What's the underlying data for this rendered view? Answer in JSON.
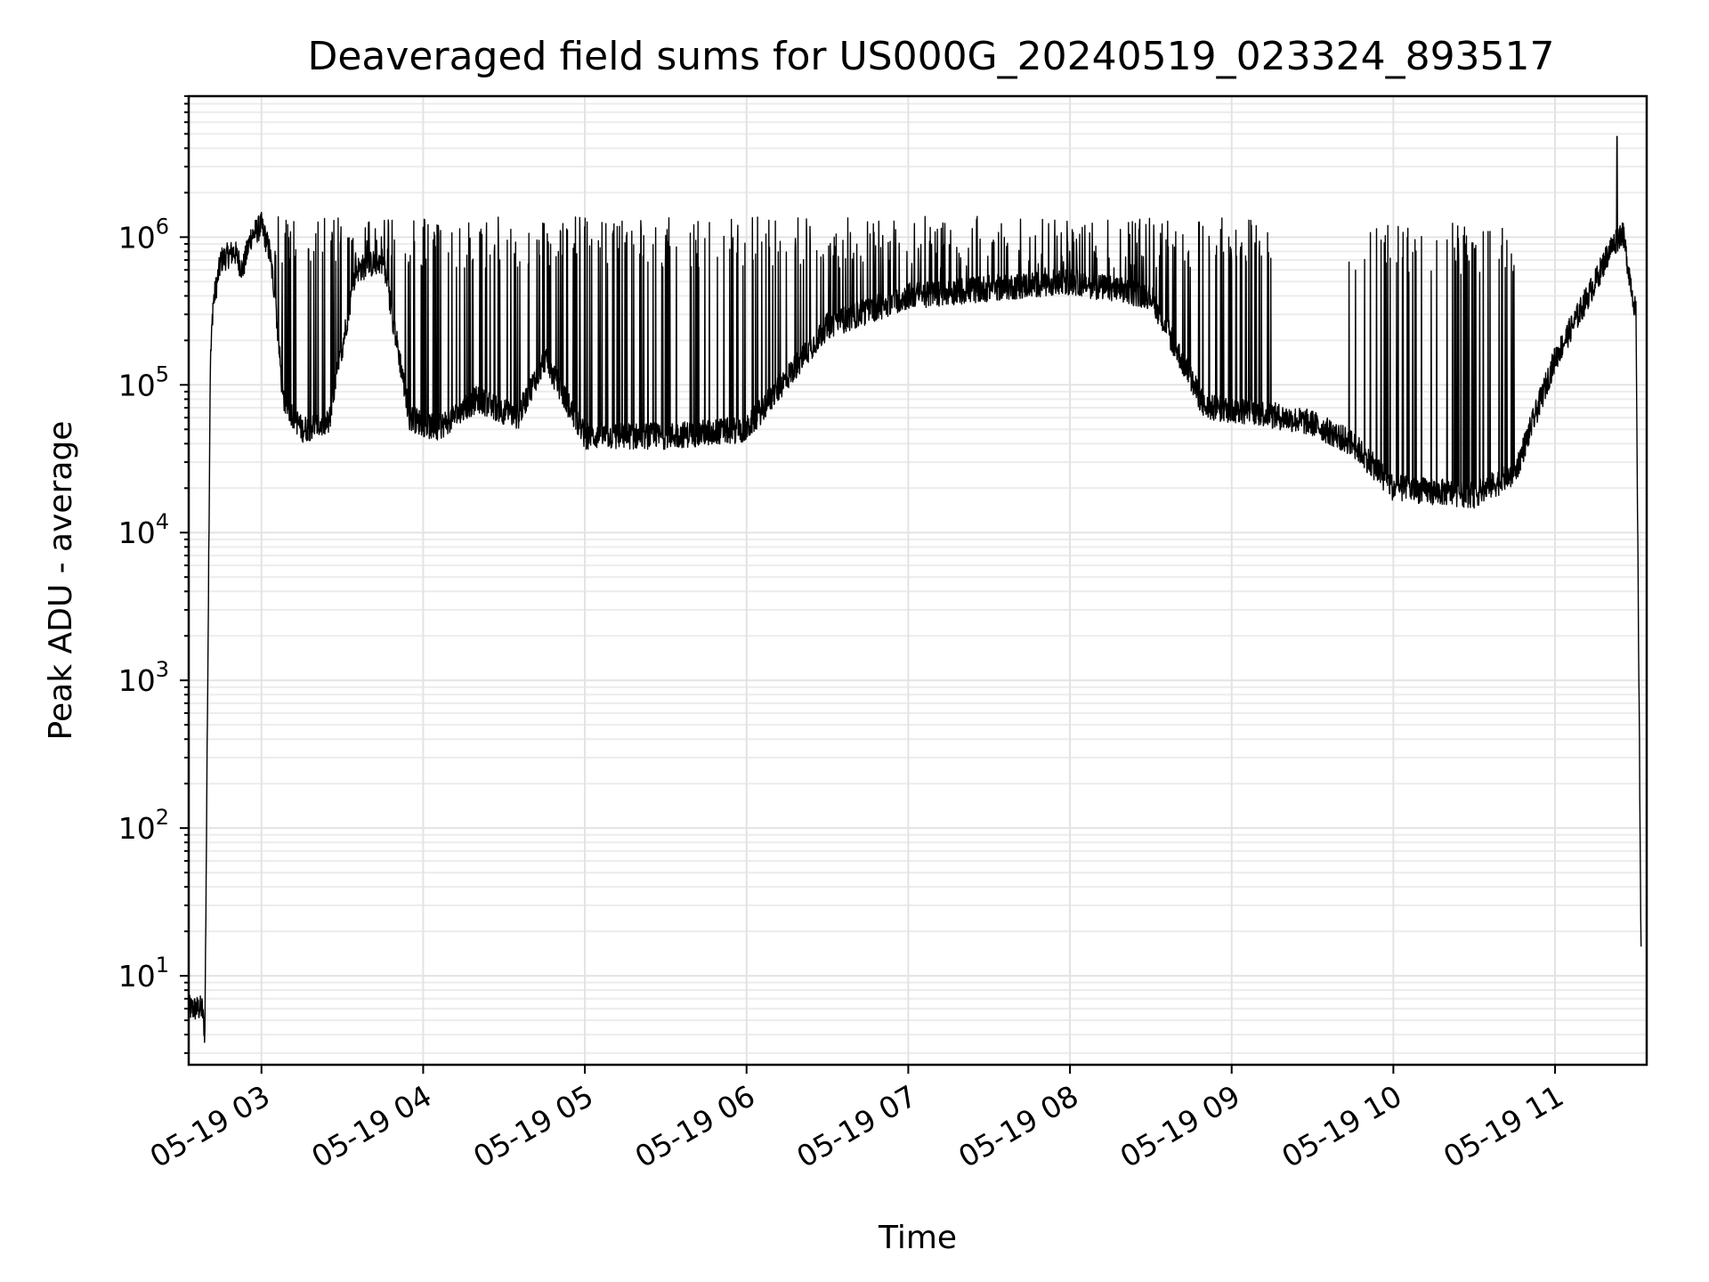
{
  "chart_data": {
    "type": "line",
    "title": "Deaveraged field sums for US000G_20240519_023324_893517",
    "xlabel": "Time",
    "ylabel": "Peak ADU - average",
    "yscale": "log",
    "ylim": [
      2.5,
      9000000
    ],
    "xlim": [
      "2024-05-19 02:33",
      "2024-05-19 11:34"
    ],
    "grid": true,
    "x_tick_labels": [
      "05-19 03",
      "05-19 04",
      "05-19 05",
      "05-19 06",
      "05-19 07",
      "05-19 08",
      "05-19 09",
      "05-19 10",
      "05-19 11"
    ],
    "y_tick_labels": [
      "10^1",
      "10^2",
      "10^3",
      "10^4",
      "10^5",
      "10^6"
    ],
    "series": [
      {
        "color": "#000000",
        "x": [
          "2024-05-19 02:33",
          "2024-05-19 02:38",
          "2024-05-19 02:39",
          "2024-05-19 02:41",
          "2024-05-19 02:42",
          "2024-05-19 02:45",
          "2024-05-19 02:50",
          "2024-05-19 02:53",
          "2024-05-19 02:56",
          "2024-05-19 03:00",
          "2024-05-19 03:03",
          "2024-05-19 03:05",
          "2024-05-19 03:08",
          "2024-05-19 03:15",
          "2024-05-19 03:25",
          "2024-05-19 03:35",
          "2024-05-19 03:45",
          "2024-05-19 03:55",
          "2024-05-19 04:05",
          "2024-05-19 04:20",
          "2024-05-19 04:35",
          "2024-05-19 04:45",
          "2024-05-19 05:00",
          "2024-05-19 05:30",
          "2024-05-19 06:00",
          "2024-05-19 06:30",
          "2024-05-19 07:00",
          "2024-05-19 07:30",
          "2024-05-19 08:00",
          "2024-05-19 08:30",
          "2024-05-19 08:50",
          "2024-05-19 09:10",
          "2024-05-19 09:30",
          "2024-05-19 09:45",
          "2024-05-19 10:00",
          "2024-05-19 10:30",
          "2024-05-19 10:45",
          "2024-05-19 11:00",
          "2024-05-19 11:15",
          "2024-05-19 11:20",
          "2024-05-19 11:25",
          "2024-05-19 11:30",
          "2024-05-19 11:32"
        ],
        "values": [
          6,
          6,
          4,
          130000,
          350000,
          700000,
          800000,
          600000,
          1000000,
          1200000,
          800000,
          400000,
          80000,
          50000,
          55000,
          600000,
          700000,
          60000,
          50000,
          80000,
          60000,
          150000,
          45000,
          45000,
          50000,
          250000,
          400000,
          450000,
          500000,
          400000,
          70000,
          65000,
          55000,
          40000,
          20000,
          18000,
          25000,
          150000,
          500000,
          800000,
          1100000,
          300000,
          10
        ]
      }
    ],
    "annotations": [
      {
        "type": "spikes",
        "from": "2024-05-19 03:05",
        "to": "2024-05-19 09:15",
        "peak": 1000000,
        "floor": 40000
      },
      {
        "type": "spikes",
        "from": "2024-05-19 09:40",
        "to": "2024-05-19 10:45",
        "peak": 900000,
        "floor": 15000
      },
      {
        "type": "spike",
        "x": "2024-05-19 11:23",
        "value": 4800000
      }
    ]
  }
}
